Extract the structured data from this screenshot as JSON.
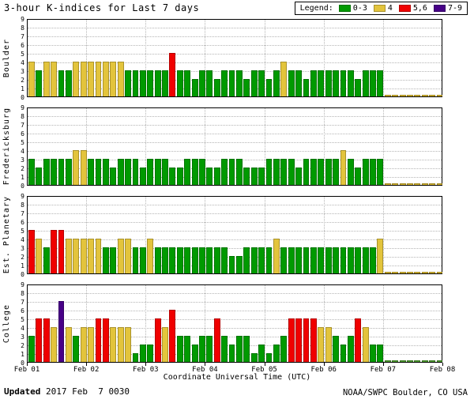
{
  "chart_data": {
    "type": "bar",
    "title": "3-hour K-indices for Last 7 days",
    "legend_label": "Legend:",
    "legend": [
      {
        "label": "0-3",
        "color": "#009A00"
      },
      {
        "label": "4",
        "color": "#E3C43C"
      },
      {
        "label": "5,6",
        "color": "#F00000"
      },
      {
        "label": "7-9",
        "color": "#470087"
      }
    ],
    "xlabel": "Coordinate Universal Time (UTC)",
    "x_ticks": [
      "Feb 01",
      "Feb 02",
      "Feb 03",
      "Feb 04",
      "Feb 05",
      "Feb 06",
      "Feb 07",
      "Feb 08"
    ],
    "ylim": [
      0,
      9
    ],
    "bins_per_day": 8,
    "grid": true,
    "colors": {
      "green": "#009A00",
      "yellow": "#E3C43C",
      "red": "#F00000",
      "purple": "#470087"
    },
    "color_rule": "0-3 green, 4 yellow, 5-6 red, 7-9 purple",
    "panels": [
      {
        "station": "Boulder",
        "trail_color": "#D8B830",
        "values": [
          4,
          3,
          4,
          4,
          3,
          3,
          4,
          4,
          4,
          4,
          4,
          4,
          4,
          3,
          3,
          3,
          3,
          3,
          3,
          5,
          3,
          3,
          2,
          3,
          3,
          2,
          3,
          3,
          3,
          2,
          3,
          3,
          2,
          3,
          4,
          3,
          3,
          2,
          3,
          3,
          3,
          3,
          3,
          3,
          2,
          3,
          3,
          3,
          0,
          0,
          0,
          0,
          0,
          0,
          0,
          0
        ]
      },
      {
        "station": "Fredericksburg",
        "trail_color": "#D8B830",
        "values": [
          3,
          2,
          3,
          3,
          3,
          3,
          4,
          4,
          3,
          3,
          3,
          2,
          3,
          3,
          3,
          2,
          3,
          3,
          3,
          2,
          2,
          3,
          3,
          3,
          2,
          2,
          3,
          3,
          3,
          2,
          2,
          2,
          3,
          3,
          3,
          3,
          2,
          3,
          3,
          3,
          3,
          3,
          4,
          3,
          2,
          3,
          3,
          3,
          0,
          0,
          0,
          0,
          0,
          0,
          0,
          0
        ]
      },
      {
        "station": "Est. Planetary",
        "trail_color": "#D8B830",
        "values": [
          5,
          4,
          3,
          5,
          5,
          4,
          4,
          4,
          4,
          4,
          3,
          3,
          4,
          4,
          3,
          3,
          4,
          3,
          3,
          3,
          3,
          3,
          3,
          3,
          3,
          3,
          3,
          2,
          2,
          3,
          3,
          3,
          3,
          4,
          3,
          3,
          3,
          3,
          3,
          3,
          3,
          3,
          3,
          3,
          3,
          3,
          3,
          4,
          0,
          0,
          0,
          0,
          0,
          0,
          0,
          0
        ]
      },
      {
        "station": "College",
        "trail_color": "#4FA02F",
        "values": [
          3,
          5,
          5,
          4,
          7,
          4,
          3,
          4,
          4,
          5,
          5,
          4,
          4,
          4,
          1,
          2,
          2,
          5,
          4,
          6,
          3,
          3,
          2,
          3,
          3,
          5,
          3,
          2,
          3,
          3,
          1,
          2,
          1,
          2,
          3,
          5,
          5,
          5,
          5,
          4,
          4,
          3,
          2,
          3,
          5,
          4,
          2,
          2,
          0,
          0,
          0,
          0,
          0,
          0,
          0,
          0
        ]
      }
    ]
  },
  "footer": {
    "updated_label": "Updated",
    "updated_value": " 2017 Feb  7 0030",
    "source": "NOAA/SWPC Boulder, CO USA"
  }
}
